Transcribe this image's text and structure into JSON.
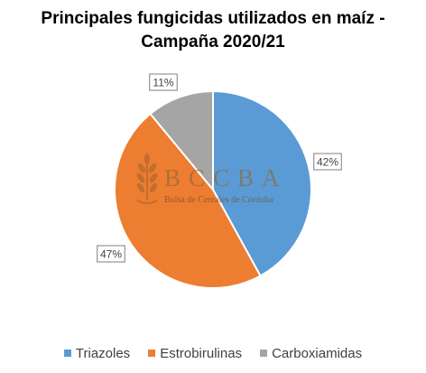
{
  "chart_data": {
    "type": "pie",
    "title_line1": "Principales fungicidas utilizados en maíz -",
    "title_line2": "Campaña 2020/21",
    "categories": [
      "Triazoles",
      "Estrobirulinas",
      "Carboxiamidas"
    ],
    "values": [
      42,
      47,
      11
    ],
    "value_labels": [
      "42%",
      "47%",
      "11%"
    ],
    "colors": [
      "#5B9BD5",
      "#ED7D31",
      "#A5A5A5"
    ],
    "start_angle_deg": 0,
    "direction": "clockwise",
    "legend_position": "bottom"
  },
  "watermark": {
    "logo_text": "BCCBA",
    "subtitle": "Bolsa de Cereales de Córdoba"
  }
}
